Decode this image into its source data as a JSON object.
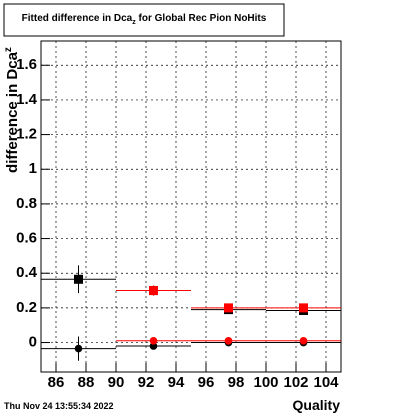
{
  "chart_data": {
    "type": "scatter",
    "title": [
      "Fitted difference in Dca",
      "z",
      " for Global Rec Pion NoHits"
    ],
    "y_label": [
      "difference in Dca",
      "z"
    ],
    "x_label": "Quality",
    "footer": "Thu Nov 24 13:55:34 2022",
    "xlim": [
      85,
      105
    ],
    "ylim": [
      -0.17,
      1.74
    ],
    "xticks": [
      86,
      88,
      90,
      92,
      94,
      96,
      98,
      100,
      102,
      104
    ],
    "yticks": [
      0,
      0.2,
      0.4,
      0.6,
      0.8,
      1,
      1.2,
      1.4,
      1.6
    ],
    "grid": true,
    "series": [
      {
        "color": "#000000",
        "marker": "square",
        "x": [
          87.5,
          92.5,
          97.5,
          102.5
        ],
        "values": [
          0.365,
          0.3,
          0.19,
          0.185
        ],
        "yerr": [
          0.08,
          0.02,
          0.01,
          0.01
        ],
        "xerr": 2.5
      },
      {
        "color": "#ff0000",
        "marker": "square",
        "x": [
          92.5,
          97.5,
          102.5
        ],
        "values": [
          0.3,
          0.2,
          0.2
        ],
        "yerr": [
          0.03,
          0.02,
          0.02
        ],
        "xerr": 2.5
      },
      {
        "color": "#000000",
        "marker": "circle",
        "x": [
          87.5,
          92.5,
          97.5,
          102.5
        ],
        "values": [
          -0.035,
          -0.02,
          0.0,
          0.0
        ],
        "yerr": [
          0.07,
          0.01,
          0.01,
          0.01
        ],
        "xerr": 2.5
      },
      {
        "color": "#ff0000",
        "marker": "circle",
        "x": [
          92.5,
          97.5,
          102.5
        ],
        "values": [
          0.01,
          0.01,
          0.01
        ],
        "yerr": [
          0.02,
          0.01,
          0.01
        ],
        "xerr": 2.5
      }
    ]
  }
}
